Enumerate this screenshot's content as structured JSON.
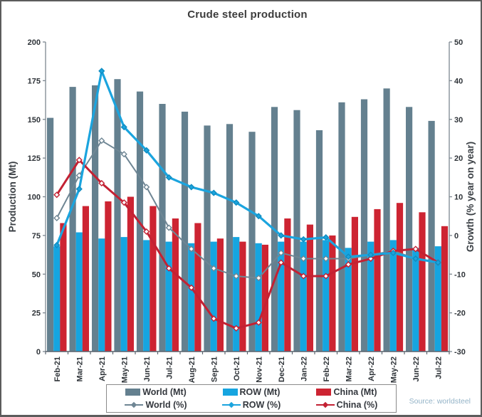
{
  "title": "Crude steel production",
  "source_note": "Source: worldsteel",
  "colors": {
    "world_bar": "#64808f",
    "row_bar": "#16a5e0",
    "china_bar": "#cd2432",
    "world_line": "#6f8694",
    "row_line": "#1ba4de",
    "china_line": "#c32133",
    "axis_line": "#7d8790",
    "tick_text": "#2e3338",
    "axis_title_text": "#3a3f44",
    "title_text": "#3c3c3c",
    "legend_border": "#8a8a8a",
    "source_text": "#93b3c7"
  },
  "axes": {
    "left_title": "Production (Mt)",
    "right_title": "Growth (% year on year)",
    "left_min": 0,
    "left_max": 200,
    "left_step": 25,
    "right_min": -30,
    "right_max": 50,
    "right_step": 10
  },
  "legend": {
    "items": [
      {
        "label": "World (Mt)",
        "type": "bar",
        "color_key": "world_bar"
      },
      {
        "label": "ROW (Mt)",
        "type": "bar",
        "color_key": "row_bar"
      },
      {
        "label": "China (Mt)",
        "type": "bar",
        "color_key": "china_bar"
      },
      {
        "label": "World (%)",
        "type": "line",
        "color_key": "world_line"
      },
      {
        "label": "ROW (%)",
        "type": "line",
        "color_key": "row_line"
      },
      {
        "label": "China (%)",
        "type": "line",
        "color_key": "china_line"
      }
    ]
  },
  "chart_data": {
    "type": "combo bar+line",
    "title": "Crude steel production",
    "ylabel_left": "Production (Mt)",
    "ylabel_right": "Growth (% year on year)",
    "ylim_left": [
      0,
      200
    ],
    "ylim_right": [
      -30,
      50
    ],
    "grid": false,
    "legend_position": "bottom",
    "categories": [
      "Feb-21",
      "Mar-21",
      "Apr-21",
      "May-21",
      "Jun-21",
      "Jul-21",
      "Aug-21",
      "Sep-21",
      "Oct-21",
      "Nov-21",
      "Dec-21",
      "Jan-22",
      "Feb-22",
      "Mar-22",
      "Apr-22",
      "May-22",
      "Jun-22",
      "Jul-22"
    ],
    "bar_series": [
      {
        "name": "World (Mt)",
        "axis": "left",
        "color_key": "world_bar",
        "values": [
          151,
          171,
          172,
          176,
          168,
          160,
          155,
          146,
          147,
          142,
          158,
          156,
          143,
          161,
          163,
          170,
          158,
          149
        ]
      },
      {
        "name": "ROW (Mt)",
        "axis": "left",
        "color_key": "row_bar",
        "values": [
          68,
          77,
          73,
          74,
          72,
          71,
          70,
          71,
          74,
          70,
          71,
          71,
          72,
          67,
          71,
          72,
          67,
          68
        ]
      },
      {
        "name": "China (Mt)",
        "axis": "left",
        "color_key": "china_bar",
        "values": [
          83,
          94,
          97,
          100,
          94,
          86,
          83,
          73,
          71,
          69,
          86,
          82,
          75,
          87,
          92,
          96,
          90,
          81
        ]
      }
    ],
    "line_series": [
      {
        "name": "World (%)",
        "axis": "right",
        "color_key": "world_line",
        "marker": "hollow-diamond",
        "width": 2,
        "values": [
          4.5,
          15.5,
          24.5,
          21,
          12.5,
          2,
          -3.5,
          -8.5,
          -10.5,
          -11,
          -4.5,
          -6,
          -6,
          -6,
          -5,
          -4,
          -6,
          -7
        ]
      },
      {
        "name": "China (%)",
        "axis": "right",
        "color_key": "china_line",
        "marker": "hollow-diamond",
        "width": 3,
        "values": [
          10.5,
          19.5,
          13.5,
          8.5,
          1,
          -8.5,
          -13.5,
          -21.5,
          -24,
          -22.5,
          -7,
          -10.5,
          -10.5,
          -7.5,
          -6,
          -4,
          -3.5,
          -7
        ]
      },
      {
        "name": "ROW (%)",
        "axis": "right",
        "color_key": "row_line",
        "marker": "filled-diamond",
        "width": 3.2,
        "values": [
          -2.5,
          12,
          42.5,
          28,
          22,
          15,
          12.5,
          11,
          8.5,
          5,
          0,
          -1,
          -0.5,
          -5.5,
          -5,
          -4.5,
          -6,
          -7
        ]
      }
    ]
  }
}
